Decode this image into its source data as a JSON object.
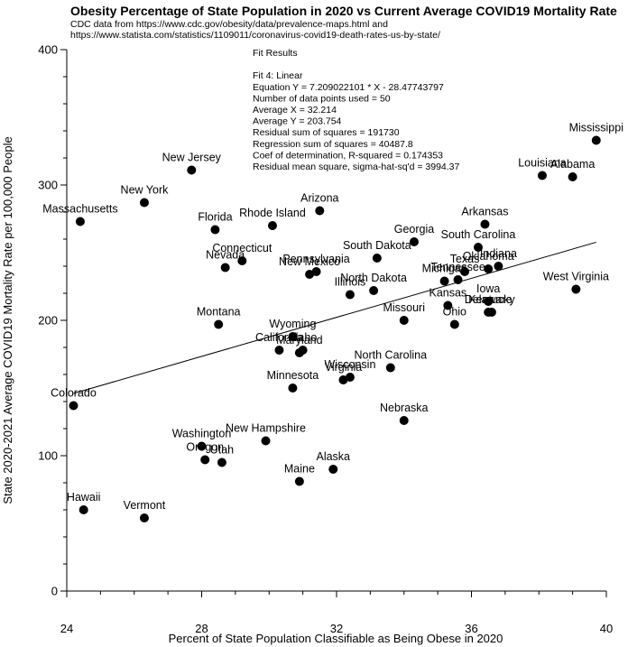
{
  "chart_data": {
    "type": "scatter",
    "title": "Obesity Percentage of State Population in 2020 vs Current Average COVID19 Mortality Rate",
    "subtitle_lines": [
      "CDC data from https://www.cdc.gov/obesity/data/prevalence-maps.html and",
      "https://www.statista.com/statistics/1109011/coronavirus-covid19-death-rates-us-by-state/"
    ],
    "xlabel": "Percent of State Population Classifiable as Being Obese in 2020",
    "ylabel": "State 2020-2021 Average COVID19 Mortality Rate per 100,000 People",
    "xlim": [
      24,
      40
    ],
    "ylim": [
      0,
      400
    ],
    "xticks": [
      24,
      28,
      32,
      36,
      40
    ],
    "yticks": [
      0,
      100,
      200,
      300,
      400
    ],
    "grid": false,
    "fit": {
      "slope": 7.209022101,
      "intercept": -28.47743797,
      "x_range": [
        24.2,
        39.7
      ],
      "lines": [
        "Fit Results",
        "",
        "Fit 4: Linear",
        "Equation Y = 7.209022101 * X - 28.47743797",
        "Number of data points used = 50",
        "Average X = 32.214",
        "Average Y = 203.754",
        "Residual sum of squares = 191730",
        "Regression sum of squares = 40487.8",
        "Coef of determination, R-squared = 0.174353",
        "Residual mean square, sigma-hat-sq'd = 3994.37"
      ]
    },
    "points": [
      {
        "label": "Mississippi",
        "x": 39.7,
        "y": 333
      },
      {
        "label": "Louisiana",
        "x": 38.1,
        "y": 307
      },
      {
        "label": "Alabama",
        "x": 39.0,
        "y": 306
      },
      {
        "label": "New Jersey",
        "x": 27.7,
        "y": 311
      },
      {
        "label": "New York",
        "x": 26.3,
        "y": 287
      },
      {
        "label": "Massachusetts",
        "x": 24.4,
        "y": 273
      },
      {
        "label": "Arizona",
        "x": 31.5,
        "y": 281
      },
      {
        "label": "Rhode Island",
        "x": 30.1,
        "y": 270
      },
      {
        "label": "Florida",
        "x": 28.4,
        "y": 267
      },
      {
        "label": "Arkansas",
        "x": 36.4,
        "y": 271
      },
      {
        "label": "Georgia",
        "x": 34.3,
        "y": 258
      },
      {
        "label": "South Carolina",
        "x": 36.2,
        "y": 254
      },
      {
        "label": "South Dakota",
        "x": 33.2,
        "y": 246
      },
      {
        "label": "Connecticut",
        "x": 29.2,
        "y": 244
      },
      {
        "label": "Nevada",
        "x": 28.7,
        "y": 239
      },
      {
        "label": "New Mexico",
        "x": 31.2,
        "y": 234
      },
      {
        "label": "Pennsylvania",
        "x": 31.4,
        "y": 236
      },
      {
        "label": "Oklahoma",
        "x": 36.5,
        "y": 238
      },
      {
        "label": "Indiana",
        "x": 36.8,
        "y": 240
      },
      {
        "label": "Tennessee",
        "x": 35.6,
        "y": 230
      },
      {
        "label": "Michigan",
        "x": 35.2,
        "y": 229
      },
      {
        "label": "Texas",
        "x": 35.8,
        "y": 236
      },
      {
        "label": "West Virginia",
        "x": 39.1,
        "y": 223
      },
      {
        "label": "North Dakota",
        "x": 33.1,
        "y": 222
      },
      {
        "label": "Illinois",
        "x": 32.4,
        "y": 219
      },
      {
        "label": "Iowa",
        "x": 36.5,
        "y": 214
      },
      {
        "label": "Kansas",
        "x": 35.3,
        "y": 211
      },
      {
        "label": "Kentucky",
        "x": 36.6,
        "y": 206
      },
      {
        "label": "Delaware",
        "x": 36.5,
        "y": 206
      },
      {
        "label": "Missouri",
        "x": 34.0,
        "y": 200
      },
      {
        "label": "Ohio",
        "x": 35.5,
        "y": 197
      },
      {
        "label": "Montana",
        "x": 28.5,
        "y": 197
      },
      {
        "label": "Wyoming",
        "x": 30.7,
        "y": 188
      },
      {
        "label": "California",
        "x": 30.3,
        "y": 178
      },
      {
        "label": "Idaho",
        "x": 31.0,
        "y": 178
      },
      {
        "label": "Maryland",
        "x": 30.9,
        "y": 176
      },
      {
        "label": "North Carolina",
        "x": 33.6,
        "y": 165
      },
      {
        "label": "Wisconsin",
        "x": 32.4,
        "y": 158
      },
      {
        "label": "Virginia",
        "x": 32.2,
        "y": 156
      },
      {
        "label": "Minnesota",
        "x": 30.7,
        "y": 150
      },
      {
        "label": "Colorado",
        "x": 24.2,
        "y": 137
      },
      {
        "label": "Nebraska",
        "x": 34.0,
        "y": 126
      },
      {
        "label": "New Hampshire",
        "x": 29.9,
        "y": 111
      },
      {
        "label": "Washington",
        "x": 28.0,
        "y": 107
      },
      {
        "label": "Oregon",
        "x": 28.1,
        "y": 97
      },
      {
        "label": "Utah",
        "x": 28.6,
        "y": 95
      },
      {
        "label": "Alaska",
        "x": 31.9,
        "y": 90
      },
      {
        "label": "Maine",
        "x": 30.9,
        "y": 81
      },
      {
        "label": "Hawaii",
        "x": 24.5,
        "y": 60
      },
      {
        "label": "Vermont",
        "x": 26.3,
        "y": 54
      }
    ]
  }
}
